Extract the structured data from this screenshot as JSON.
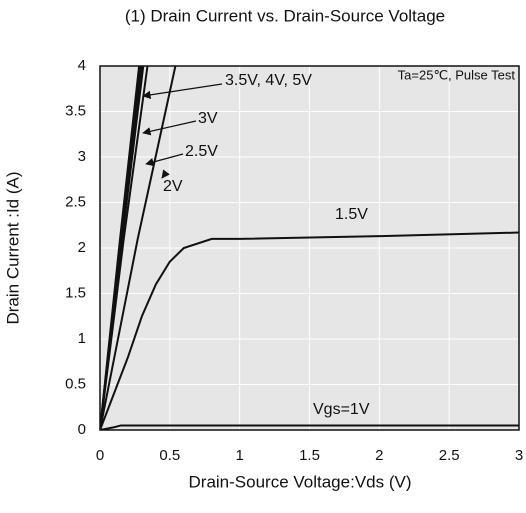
{
  "chart_data": {
    "type": "line",
    "title": "(1) Drain Current vs. Drain-Source Voltage",
    "note": "Ta=25℃, Pulse Test",
    "x_label": "Drain-Source Voltage:Vds  (V)",
    "y_label": "Drain Current :Id  (A)",
    "xlim": [
      0,
      3
    ],
    "ylim": [
      0,
      4
    ],
    "xticks": [
      0,
      0.5,
      1,
      1.5,
      2,
      2.5,
      3
    ],
    "yticks": [
      0,
      0.5,
      1,
      1.5,
      2,
      2.5,
      3,
      3.5,
      4
    ],
    "grid": true,
    "series": [
      {
        "color": "#111111",
        "x": [
          0,
          0.1,
          0.15,
          3
        ],
        "values": [
          0,
          0.03,
          0.05,
          0.05
        ]
      },
      {
        "color": "#111111",
        "x": [
          0,
          0.1,
          0.2,
          0.3,
          0.4,
          0.5,
          0.6,
          0.8,
          1,
          2,
          3
        ],
        "values": [
          0,
          0.4,
          0.8,
          1.25,
          1.6,
          1.85,
          2,
          2.1,
          2.1,
          2.13,
          2.17
        ]
      },
      {
        "color": "#111111",
        "x": [
          0,
          0.27,
          0.54
        ],
        "values": [
          0,
          2.1,
          4
        ]
      },
      {
        "color": "#111111",
        "x": [
          0,
          0.17,
          0.34
        ],
        "values": [
          0,
          2.1,
          4
        ]
      },
      {
        "color": "#111111",
        "x": [
          0,
          0.155,
          0.31
        ],
        "values": [
          0,
          2.05,
          4
        ]
      },
      {
        "color": "#111111",
        "x": [
          0,
          0.15,
          0.3
        ],
        "values": [
          0,
          2.05,
          4
        ]
      },
      {
        "color": "#111111",
        "x": [
          0,
          0.145,
          0.29
        ],
        "values": [
          0,
          2.05,
          4
        ]
      },
      {
        "color": "#111111",
        "x": [
          0,
          0.14,
          0.28
        ],
        "values": [
          0,
          2.05,
          4
        ]
      }
    ],
    "annotations": [
      "Vgs=1V",
      "1.5V",
      "2V",
      "2.5V",
      "3V",
      "3.5V, 4V, 5V"
    ]
  }
}
